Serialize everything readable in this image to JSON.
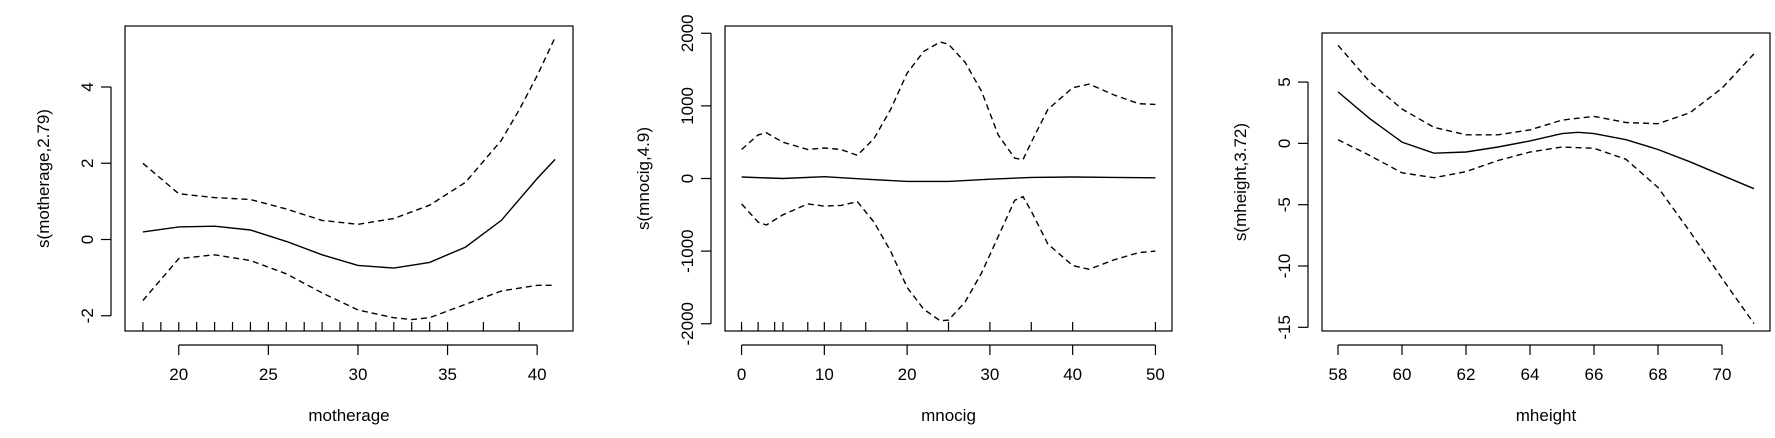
{
  "chart_data": [
    {
      "type": "line",
      "xlabel": "motherage",
      "ylabel": "s(motherage,2.79)",
      "xlim": [
        17,
        42
      ],
      "ylim": [
        -2.4,
        5.6
      ],
      "xticks": [
        20,
        25,
        30,
        35,
        40
      ],
      "yticks": [
        -2,
        0,
        2,
        4
      ],
      "xtick_labels": [
        "20",
        "25",
        "30",
        "35",
        "40"
      ],
      "ytick_labels": [
        "-2",
        "0",
        "2",
        "4"
      ],
      "rug": [
        18,
        19,
        20,
        21,
        22,
        23,
        24,
        25,
        26,
        27,
        28,
        29,
        30,
        31,
        32,
        33,
        34,
        35,
        37,
        39
      ],
      "series": [
        {
          "style": "solid",
          "x": [
            18,
            20,
            22,
            24,
            26,
            28,
            30,
            32,
            34,
            36,
            38,
            40,
            41
          ],
          "y": [
            0.2,
            0.33,
            0.35,
            0.25,
            -0.05,
            -0.4,
            -0.68,
            -0.75,
            -0.6,
            -0.2,
            0.5,
            1.6,
            2.1
          ]
        },
        {
          "style": "dashed",
          "x": [
            18,
            20,
            22,
            24,
            26,
            28,
            30,
            32,
            34,
            36,
            38,
            39,
            40,
            41
          ],
          "y": [
            2.0,
            1.2,
            1.1,
            1.05,
            0.8,
            0.5,
            0.4,
            0.55,
            0.9,
            1.5,
            2.6,
            3.4,
            4.3,
            5.3
          ]
        },
        {
          "style": "dashed",
          "x": [
            18,
            20,
            22,
            24,
            26,
            28,
            30,
            32,
            33,
            34,
            36,
            38,
            40,
            41
          ],
          "y": [
            -1.6,
            -0.5,
            -0.4,
            -0.55,
            -0.9,
            -1.4,
            -1.85,
            -2.05,
            -2.1,
            -2.05,
            -1.7,
            -1.35,
            -1.2,
            -1.2
          ]
        }
      ]
    },
    {
      "type": "line",
      "xlabel": "mnocig",
      "ylabel": "s(mnocig,4.9)",
      "xlim": [
        -2,
        52
      ],
      "ylim": [
        -2100,
        2100
      ],
      "xticks": [
        0,
        10,
        20,
        30,
        40,
        50
      ],
      "yticks": [
        -2000,
        -1000,
        0,
        1000,
        2000
      ],
      "xtick_labels": [
        "0",
        "10",
        "20",
        "30",
        "40",
        "50"
      ],
      "ytick_labels": [
        "-2000",
        "-1000",
        "0",
        "1000",
        "2000"
      ],
      "rug": [
        0,
        2,
        4,
        5,
        8,
        10,
        12,
        15,
        20,
        25,
        30,
        35,
        40,
        50
      ],
      "series": [
        {
          "style": "solid",
          "x": [
            0,
            5,
            10,
            15,
            20,
            25,
            30,
            35,
            40,
            45,
            50
          ],
          "y": [
            20,
            0,
            25,
            -10,
            -40,
            -40,
            -10,
            15,
            20,
            15,
            10
          ]
        },
        {
          "style": "dashed",
          "x": [
            0,
            2,
            3,
            5,
            8,
            10,
            12,
            14,
            16,
            18,
            20,
            22,
            24,
            25,
            27,
            29,
            31,
            33,
            34,
            35,
            37,
            40,
            42,
            45,
            48,
            50
          ],
          "y": [
            400,
            600,
            630,
            500,
            400,
            420,
            400,
            320,
            550,
            950,
            1450,
            1750,
            1880,
            1850,
            1600,
            1200,
            600,
            280,
            260,
            500,
            950,
            1250,
            1300,
            1150,
            1030,
            1020
          ]
        },
        {
          "style": "dashed",
          "x": [
            0,
            2,
            3,
            5,
            8,
            10,
            12,
            14,
            16,
            18,
            20,
            22,
            24,
            25,
            27,
            29,
            31,
            33,
            34,
            35,
            37,
            40,
            42,
            45,
            48,
            50
          ],
          "y": [
            -350,
            -600,
            -640,
            -500,
            -350,
            -380,
            -370,
            -320,
            -600,
            -1000,
            -1500,
            -1800,
            -1960,
            -1950,
            -1700,
            -1300,
            -800,
            -300,
            -250,
            -450,
            -900,
            -1200,
            -1250,
            -1120,
            -1020,
            -1000
          ]
        }
      ]
    },
    {
      "type": "line",
      "xlabel": "mheight",
      "ylabel": "s(mheight,3.72)",
      "xlim": [
        57.5,
        71.5
      ],
      "ylim": [
        -15.3,
        9.0
      ],
      "xticks": [
        58,
        60,
        62,
        64,
        66,
        68,
        70
      ],
      "yticks": [
        -15,
        -10,
        -5,
        0,
        5
      ],
      "xtick_labels": [
        "58",
        "60",
        "62",
        "64",
        "66",
        "68",
        "70"
      ],
      "ytick_labels": [
        "-15",
        "-10",
        "-5",
        "0",
        "5"
      ],
      "rug": [],
      "series": [
        {
          "style": "solid",
          "x": [
            58,
            59,
            60,
            61,
            62,
            63,
            64,
            65,
            65.5,
            66,
            67,
            68,
            69,
            70,
            71
          ],
          "y": [
            4.2,
            2.0,
            0.1,
            -0.8,
            -0.7,
            -0.3,
            0.2,
            0.8,
            0.9,
            0.8,
            0.3,
            -0.5,
            -1.5,
            -2.6,
            -3.7
          ]
        },
        {
          "style": "dashed",
          "x": [
            58,
            59,
            60,
            61,
            62,
            63,
            64,
            65,
            66,
            67,
            68,
            69,
            70,
            71
          ],
          "y": [
            8.0,
            5.0,
            2.8,
            1.3,
            0.7,
            0.7,
            1.1,
            1.9,
            2.2,
            1.7,
            1.6,
            2.5,
            4.5,
            7.3
          ]
        },
        {
          "style": "dashed",
          "x": [
            58,
            59,
            60,
            61,
            62,
            63,
            64,
            65,
            66,
            67,
            68,
            69,
            70,
            71
          ],
          "y": [
            0.3,
            -1.0,
            -2.4,
            -2.8,
            -2.3,
            -1.4,
            -0.7,
            -0.3,
            -0.4,
            -1.3,
            -3.6,
            -7.2,
            -11.0,
            -14.7
          ]
        }
      ]
    }
  ]
}
